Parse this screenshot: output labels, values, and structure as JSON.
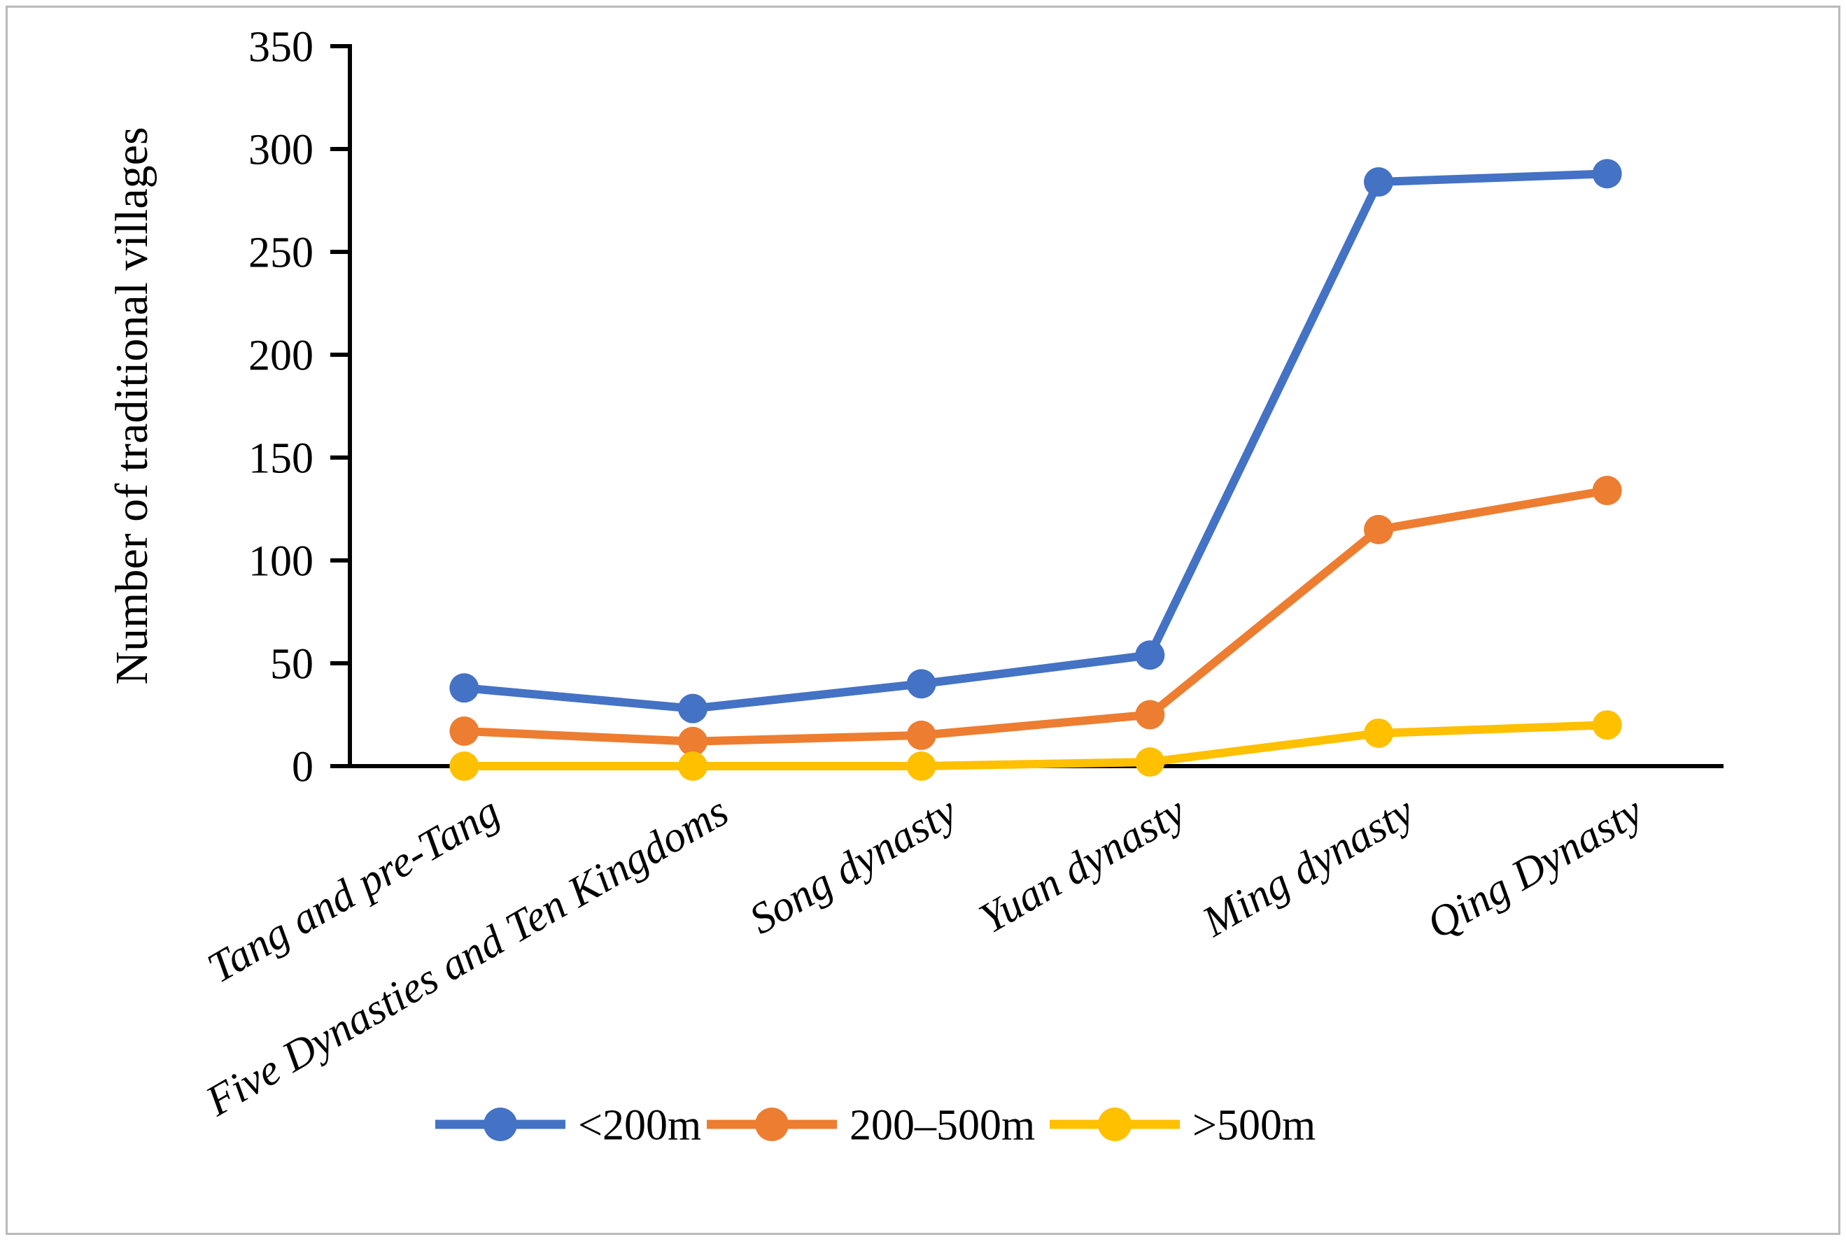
{
  "figure": {
    "background_color": "#ffffff",
    "border_color": "#b9b9b9"
  },
  "chart_data": {
    "type": "line",
    "title": "",
    "xlabel": "",
    "ylabel": "Number of traditional villages",
    "ylim": [
      0,
      350
    ],
    "ytick_step": 50,
    "ytick_labels": [
      "0",
      "50",
      "100",
      "150",
      "200",
      "250",
      "300",
      "350"
    ],
    "grid": false,
    "legend_position": "bottom-center",
    "axis_color": "#000000",
    "categories": [
      "Tang and pre-Tang",
      "Five Dynasties and Ten Kingdoms",
      "Song dynasty",
      "Yuan dynasty",
      "Ming dynasty",
      "Qing Dynasty"
    ],
    "series": [
      {
        "name": "<200m",
        "color": "#4472C4",
        "values": [
          38,
          28,
          40,
          54,
          284,
          288
        ]
      },
      {
        "name": "200–500m",
        "color": "#ED7D31",
        "values": [
          17,
          12,
          15,
          25,
          115,
          134
        ]
      },
      {
        "name": ">500m",
        "color": "#FFC000",
        "values": [
          0,
          0,
          0,
          2,
          16,
          20
        ]
      }
    ]
  }
}
